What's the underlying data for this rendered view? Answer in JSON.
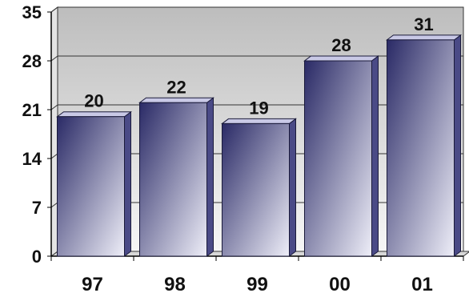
{
  "chart_data": {
    "type": "bar",
    "categories": [
      "97",
      "98",
      "99",
      "00",
      "01"
    ],
    "values": [
      20,
      22,
      19,
      28,
      31
    ],
    "data_labels": [
      "20",
      "22",
      "19",
      "28",
      "31"
    ],
    "yticks": [
      "0",
      "7",
      "14",
      "21",
      "28",
      "35"
    ],
    "ylim": [
      0,
      35
    ],
    "grid": true,
    "style": "3d",
    "title": "",
    "xlabel": "",
    "ylabel": ""
  },
  "colors": {
    "bar_dark": "#2a2a66",
    "bar_light": "#eeeef8",
    "bar_top": "#c9c9e6",
    "bar_side": "#4a4a86",
    "wall_top": "#bdbdbd",
    "wall_bottom": "#f6f6f6",
    "grid": "#333333"
  }
}
